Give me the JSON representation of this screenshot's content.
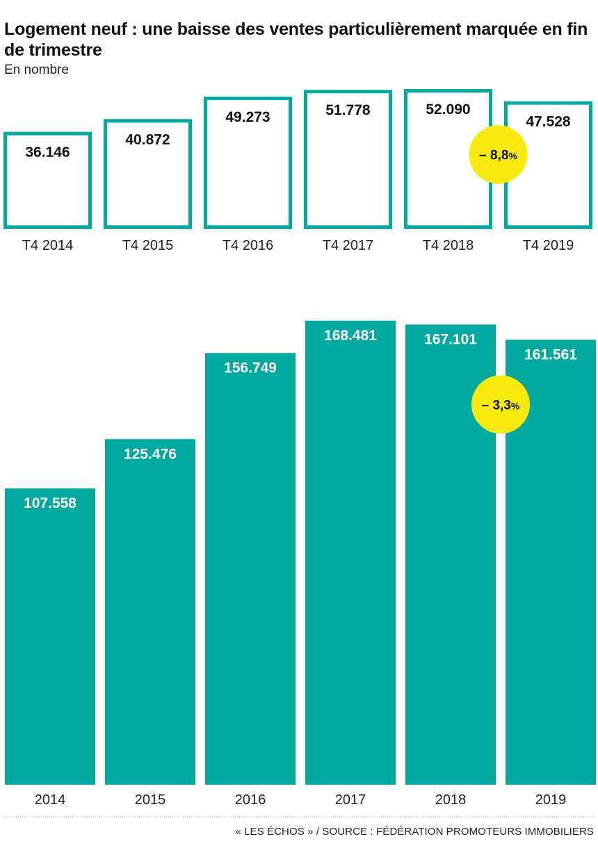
{
  "title": "Logement neuf : une baisse des ventes particulièrement marquée en fin de trimestre",
  "subtitle": "En nombre",
  "source": "« LES ÉCHOS » / SOURCE : FÉDÉRATION PROMOTEURS IMMOBILIERS",
  "colors": {
    "bar": "#00a99d",
    "badge": "#f8e90f",
    "text": "#111111"
  },
  "chart_data": [
    {
      "type": "bar",
      "style": "outline",
      "categories": [
        "T4 2014",
        "T4 2015",
        "T4 2016",
        "T4 2017",
        "T4 2018",
        "T4 2019"
      ],
      "values": [
        36146,
        40872,
        49273,
        51778,
        52090,
        47528
      ],
      "value_labels": [
        "36.146",
        "40.872",
        "49.273",
        "51.778",
        "52.090",
        "47.528"
      ],
      "annotation": {
        "text": "– 8,8",
        "unit": "%",
        "between": [
          "T4 2018",
          "T4 2019"
        ]
      }
    },
    {
      "type": "bar",
      "style": "filled",
      "categories": [
        "2014",
        "2015",
        "2016",
        "2017",
        "2018",
        "2019"
      ],
      "values": [
        107558,
        125476,
        156749,
        168481,
        167101,
        161561
      ],
      "value_labels": [
        "107.558",
        "125.476",
        "156.749",
        "168.481",
        "167.101",
        "161.561"
      ],
      "annotation": {
        "text": "– 3,3",
        "unit": "%",
        "between": [
          "2018",
          "2019"
        ]
      }
    }
  ]
}
